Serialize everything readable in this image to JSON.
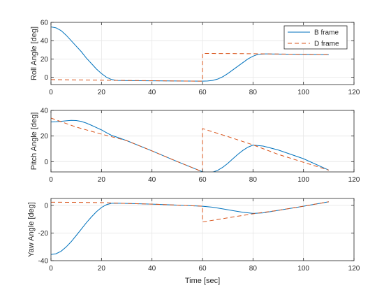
{
  "window": {
    "background": "#ffffff"
  },
  "colors": {
    "b_frame": "#0072bd",
    "d_frame": "#d95319",
    "grid": "#e6e6e6",
    "axis": "#262626"
  },
  "chart_data": [
    {
      "type": "line",
      "ylabel": "Roll Angle [deg]",
      "xlabel": "",
      "xlim": [
        0,
        120
      ],
      "ylim": [
        -8,
        60
      ],
      "xticks": [
        0,
        20,
        40,
        60,
        80,
        100,
        120
      ],
      "yticks": [
        0,
        20,
        40,
        60
      ],
      "grid": true,
      "legend": {
        "location": "top-right",
        "entries": [
          {
            "label": "B frame",
            "style": "solid",
            "color": "#0072bd"
          },
          {
            "label": "D frame",
            "style": "dashed",
            "color": "#d95319"
          }
        ]
      },
      "series": [
        {
          "name": "B frame",
          "style": "solid",
          "color": "#0072bd",
          "x": [
            0,
            2,
            4,
            6,
            8,
            10,
            12,
            14,
            16,
            18,
            20,
            22,
            24,
            26,
            30,
            40,
            50,
            60,
            62,
            64,
            66,
            68,
            70,
            72,
            74,
            76,
            78,
            80,
            82,
            85,
            90,
            100,
            110
          ],
          "y": [
            55,
            54,
            51,
            46,
            40,
            34,
            28,
            21,
            15,
            9,
            4,
            0,
            -2.5,
            -3.5,
            -3.7,
            -3.9,
            -4.1,
            -4.3,
            -4.1,
            -3.5,
            -2,
            0.5,
            4,
            8,
            12,
            16,
            20,
            23,
            25,
            25.5,
            25.3,
            25,
            24.7
          ]
        },
        {
          "name": "D frame",
          "style": "dashed",
          "color": "#d95319",
          "x": [
            0,
            10,
            20,
            25,
            30,
            40,
            50,
            60,
            60,
            70,
            80,
            90,
            100,
            110
          ],
          "y": [
            -2.6,
            -2.9,
            -3.2,
            -3.4,
            -3.5,
            -3.8,
            -4.1,
            -4.3,
            26,
            25.9,
            25.7,
            25.4,
            25.1,
            24.8
          ]
        }
      ]
    },
    {
      "type": "line",
      "ylabel": "Pitch Angle [deg]",
      "xlabel": "",
      "xlim": [
        0,
        120
      ],
      "ylim": [
        -8,
        40
      ],
      "xticks": [
        0,
        20,
        40,
        60,
        80,
        100,
        120
      ],
      "yticks": [
        0,
        20,
        40
      ],
      "grid": true,
      "series": [
        {
          "name": "B frame",
          "style": "solid",
          "color": "#0072bd",
          "x": [
            0,
            2,
            4,
            6,
            8,
            10,
            12,
            14,
            16,
            18,
            20,
            22,
            24,
            26,
            30,
            40,
            50,
            60,
            62,
            64,
            66,
            68,
            70,
            72,
            74,
            76,
            78,
            80,
            84,
            90,
            100,
            110
          ],
          "y": [
            31,
            31.2,
            31.5,
            31.9,
            32.2,
            32.1,
            31.4,
            30.1,
            28.4,
            26.6,
            24.8,
            22.6,
            20.5,
            19.2,
            16.4,
            8.4,
            0.1,
            -7.9,
            -8.5,
            -8.2,
            -6.8,
            -4.4,
            -1.4,
            2.2,
            5.7,
            8.8,
            11.3,
            12.9,
            12.2,
            9.1,
            2.3,
            -6.6
          ]
        },
        {
          "name": "D frame",
          "style": "dashed",
          "color": "#d95319",
          "x": [
            0,
            10,
            20,
            30,
            40,
            50,
            60,
            60,
            70,
            80,
            90,
            100,
            110
          ],
          "y": [
            34,
            27,
            21.5,
            16.4,
            8.4,
            0.1,
            -7.9,
            25.8,
            19.6,
            13.1,
            5.7,
            -0.5,
            -6.6
          ]
        }
      ]
    },
    {
      "type": "line",
      "ylabel": "Yaw Angle [deg]",
      "xlabel": "Time [sec]",
      "xlim": [
        0,
        120
      ],
      "ylim": [
        -40,
        5
      ],
      "xticks": [
        0,
        20,
        40,
        60,
        80,
        100,
        120
      ],
      "yticks": [
        -40,
        -20,
        0
      ],
      "grid": true,
      "series": [
        {
          "name": "B frame",
          "style": "solid",
          "color": "#0072bd",
          "x": [
            0,
            2,
            4,
            6,
            8,
            10,
            12,
            14,
            16,
            18,
            20,
            22,
            24,
            26,
            30,
            40,
            50,
            60,
            64,
            68,
            72,
            76,
            80,
            84,
            90,
            100,
            110
          ],
          "y": [
            -35.5,
            -35,
            -33.2,
            -30.1,
            -26.3,
            -21.8,
            -17.2,
            -12.6,
            -8.4,
            -4.6,
            -1.5,
            0.5,
            1.5,
            1.6,
            1.4,
            0.9,
            0.2,
            -0.6,
            -1.3,
            -2.5,
            -3.8,
            -5,
            -5.8,
            -5.4,
            -3.6,
            -0.6,
            2.6
          ]
        },
        {
          "name": "D frame",
          "style": "dashed",
          "color": "#d95319",
          "x": [
            0,
            10,
            20,
            30,
            40,
            50,
            60,
            60,
            70,
            80,
            90,
            100,
            110
          ],
          "y": [
            2.3,
            2.2,
            2,
            1.4,
            0.9,
            0.2,
            -0.6,
            -12,
            -9,
            -6.1,
            -3.6,
            -0.6,
            2.6
          ]
        }
      ]
    }
  ]
}
